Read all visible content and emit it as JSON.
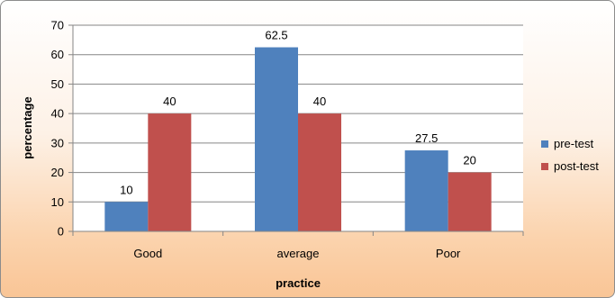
{
  "chart_data": {
    "type": "bar",
    "categories": [
      "Good",
      "average",
      "Poor"
    ],
    "series": [
      {
        "name": "pre-test",
        "values": [
          10,
          62.5,
          27.5
        ],
        "color": "#4f81bd"
      },
      {
        "name": "post-test",
        "values": [
          40,
          40,
          20
        ],
        "color": "#c0504d"
      }
    ],
    "data_labels": [
      [
        "10",
        "62.5",
        "27.5"
      ],
      [
        "40",
        "40",
        "20"
      ]
    ],
    "xlabel": "practice",
    "ylabel": "percentage",
    "ylim": [
      0,
      70
    ],
    "yticks": [
      0,
      10,
      20,
      30,
      40,
      50,
      60,
      70
    ],
    "grid": true,
    "legend": "right"
  }
}
